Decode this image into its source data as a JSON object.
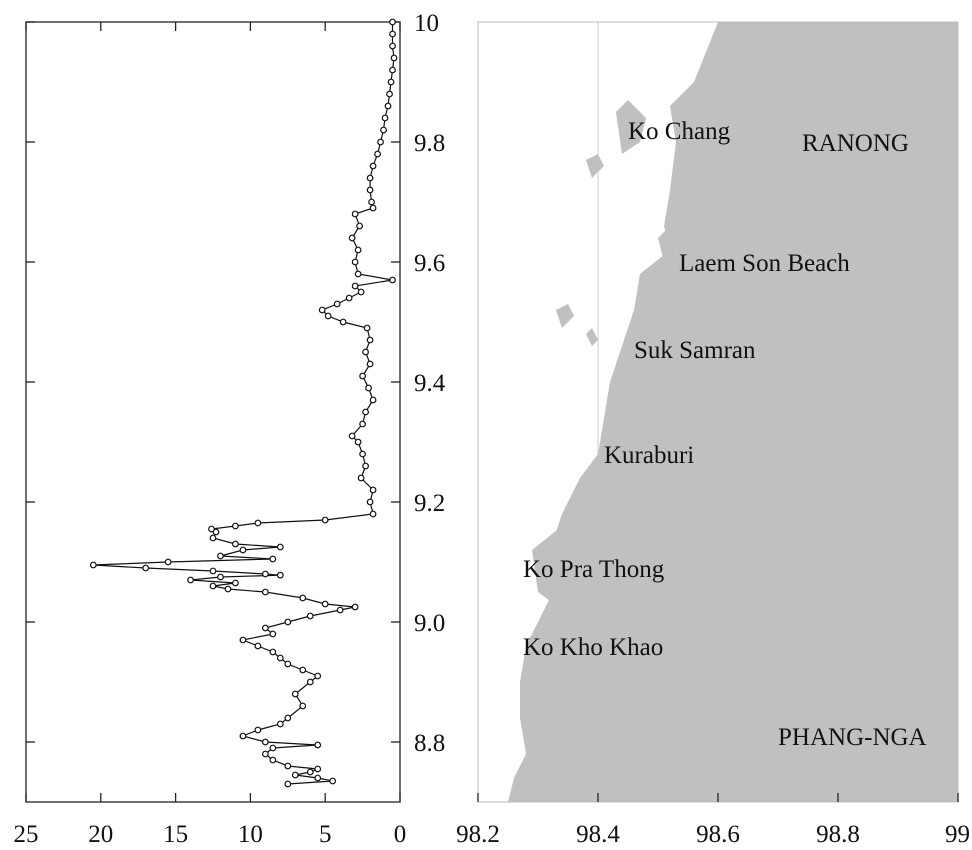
{
  "colors": {
    "land": "#c0c0c0",
    "axis": "#222222",
    "line": "#111111",
    "marker_fill": "#ffffff",
    "marker_stroke": "#111111",
    "sea": "#ffffff"
  },
  "chart_data": [
    {
      "type": "line",
      "orientation": "horizontal-profile",
      "title": "",
      "xlabel": "",
      "ylabel": "",
      "x_reversed": true,
      "xlim": [
        25,
        0
      ],
      "ylim": [
        8.7,
        10.0
      ],
      "x_ticks": [
        "25",
        "20",
        "15",
        "10",
        "5",
        "0"
      ],
      "y_ticks": [
        "8.8",
        "9.0",
        "9.2",
        "9.4",
        "9.6",
        "9.8",
        "10"
      ],
      "grid": false,
      "legend": "none",
      "markers": "open-circle",
      "points": [
        [
          0.5,
          10.0
        ],
        [
          0.5,
          9.98
        ],
        [
          0.5,
          9.96
        ],
        [
          0.4,
          9.94
        ],
        [
          0.5,
          9.92
        ],
        [
          0.6,
          9.9
        ],
        [
          0.7,
          9.88
        ],
        [
          0.8,
          9.86
        ],
        [
          1.0,
          9.84
        ],
        [
          1.1,
          9.82
        ],
        [
          1.3,
          9.8
        ],
        [
          1.5,
          9.78
        ],
        [
          1.8,
          9.76
        ],
        [
          2.0,
          9.74
        ],
        [
          2.0,
          9.72
        ],
        [
          1.9,
          9.7
        ],
        [
          1.8,
          9.69
        ],
        [
          3.0,
          9.68
        ],
        [
          2.7,
          9.66
        ],
        [
          3.2,
          9.64
        ],
        [
          2.8,
          9.62
        ],
        [
          3.0,
          9.6
        ],
        [
          2.8,
          9.58
        ],
        [
          0.5,
          9.57
        ],
        [
          3.0,
          9.56
        ],
        [
          2.6,
          9.55
        ],
        [
          3.4,
          9.54
        ],
        [
          4.2,
          9.53
        ],
        [
          5.2,
          9.52
        ],
        [
          4.8,
          9.51
        ],
        [
          3.8,
          9.5
        ],
        [
          2.2,
          9.49
        ],
        [
          2.0,
          9.47
        ],
        [
          2.3,
          9.45
        ],
        [
          2.0,
          9.43
        ],
        [
          2.5,
          9.41
        ],
        [
          2.1,
          9.39
        ],
        [
          1.8,
          9.37
        ],
        [
          2.3,
          9.35
        ],
        [
          2.5,
          9.33
        ],
        [
          3.2,
          9.31
        ],
        [
          2.8,
          9.3
        ],
        [
          2.5,
          9.28
        ],
        [
          2.3,
          9.26
        ],
        [
          2.6,
          9.24
        ],
        [
          1.8,
          9.22
        ],
        [
          2.0,
          9.2
        ],
        [
          1.8,
          9.18
        ],
        [
          5.0,
          9.17
        ],
        [
          9.5,
          9.165
        ],
        [
          11.0,
          9.16
        ],
        [
          12.6,
          9.155
        ],
        [
          12.3,
          9.15
        ],
        [
          12.5,
          9.14
        ],
        [
          11.0,
          9.13
        ],
        [
          8.0,
          9.125
        ],
        [
          10.5,
          9.12
        ],
        [
          12.0,
          9.11
        ],
        [
          8.5,
          9.105
        ],
        [
          15.5,
          9.1
        ],
        [
          20.5,
          9.095
        ],
        [
          17.0,
          9.09
        ],
        [
          12.5,
          9.085
        ],
        [
          9.0,
          9.08
        ],
        [
          8.0,
          9.078
        ],
        [
          12.0,
          9.075
        ],
        [
          14.0,
          9.07
        ],
        [
          11.0,
          9.065
        ],
        [
          12.5,
          9.06
        ],
        [
          11.5,
          9.055
        ],
        [
          9.0,
          9.05
        ],
        [
          6.5,
          9.04
        ],
        [
          5.0,
          9.03
        ],
        [
          3.0,
          9.025
        ],
        [
          4.0,
          9.02
        ],
        [
          6.0,
          9.01
        ],
        [
          7.5,
          9.0
        ],
        [
          9.0,
          8.99
        ],
        [
          8.5,
          8.98
        ],
        [
          10.5,
          8.97
        ],
        [
          9.5,
          8.96
        ],
        [
          8.5,
          8.95
        ],
        [
          8.0,
          8.94
        ],
        [
          7.5,
          8.93
        ],
        [
          6.5,
          8.92
        ],
        [
          5.5,
          8.91
        ],
        [
          6.0,
          8.9
        ],
        [
          7.0,
          8.88
        ],
        [
          6.5,
          8.86
        ],
        [
          7.5,
          8.84
        ],
        [
          8.0,
          8.83
        ],
        [
          9.5,
          8.82
        ],
        [
          10.5,
          8.81
        ],
        [
          9.0,
          8.8
        ],
        [
          5.5,
          8.795
        ],
        [
          8.5,
          8.79
        ],
        [
          9.0,
          8.78
        ],
        [
          8.5,
          8.77
        ],
        [
          7.5,
          8.76
        ],
        [
          5.5,
          8.755
        ],
        [
          6.0,
          8.75
        ],
        [
          7.0,
          8.745
        ],
        [
          5.5,
          8.74
        ],
        [
          4.5,
          8.735
        ],
        [
          7.5,
          8.73
        ]
      ]
    },
    {
      "type": "map",
      "xlim": [
        98.2,
        99.0
      ],
      "ylim": [
        8.7,
        10.0
      ],
      "x_ticks": [
        "98.2",
        "98.4",
        "98.6",
        "98.8",
        "99"
      ],
      "coastline": [
        [
          99.0,
          10.0
        ],
        [
          98.6,
          10.0
        ],
        [
          98.58,
          9.95
        ],
        [
          98.56,
          9.9
        ],
        [
          98.52,
          9.86
        ],
        [
          98.53,
          9.8
        ],
        [
          98.52,
          9.72
        ],
        [
          98.51,
          9.66
        ],
        [
          98.52,
          9.62
        ],
        [
          98.47,
          9.58
        ],
        [
          98.46,
          9.52
        ],
        [
          98.44,
          9.46
        ],
        [
          98.42,
          9.4
        ],
        [
          98.41,
          9.34
        ],
        [
          98.4,
          9.28
        ],
        [
          98.37,
          9.24
        ],
        [
          98.34,
          9.18
        ],
        [
          98.32,
          9.12
        ],
        [
          98.31,
          9.08
        ],
        [
          98.32,
          9.04
        ],
        [
          98.3,
          9.0
        ],
        [
          98.28,
          8.96
        ],
        [
          98.27,
          8.9
        ],
        [
          98.27,
          8.84
        ],
        [
          98.28,
          8.78
        ],
        [
          98.26,
          8.74
        ],
        [
          98.25,
          8.7
        ],
        [
          99.0,
          8.7
        ]
      ],
      "islands": [
        [
          [
            98.43,
            9.85
          ],
          [
            98.45,
            9.87
          ],
          [
            98.48,
            9.84
          ],
          [
            98.47,
            9.8
          ],
          [
            98.44,
            9.78
          ]
        ],
        [
          [
            98.38,
            9.77
          ],
          [
            98.4,
            9.78
          ],
          [
            98.41,
            9.76
          ],
          [
            98.39,
            9.74
          ]
        ],
        [
          [
            98.5,
            9.64
          ],
          [
            98.52,
            9.66
          ],
          [
            98.53,
            9.63
          ],
          [
            98.51,
            9.6
          ]
        ],
        [
          [
            98.33,
            9.52
          ],
          [
            98.35,
            9.53
          ],
          [
            98.36,
            9.51
          ],
          [
            98.34,
            9.49
          ]
        ],
        [
          [
            98.38,
            9.48
          ],
          [
            98.39,
            9.49
          ],
          [
            98.4,
            9.47
          ],
          [
            98.39,
            9.46
          ]
        ],
        [
          [
            98.34,
            9.16
          ],
          [
            98.38,
            9.14
          ],
          [
            98.38,
            9.06
          ],
          [
            98.34,
            9.02
          ],
          [
            98.3,
            9.05
          ],
          [
            98.29,
            9.12
          ]
        ],
        [
          [
            98.36,
            9.04
          ],
          [
            98.4,
            9.03
          ],
          [
            98.38,
            8.99
          ],
          [
            98.35,
            9.0
          ]
        ]
      ],
      "labels": [
        {
          "text": "Ko Chang",
          "lon": 98.45,
          "lat": 9.82
        },
        {
          "text": "RANONG",
          "lon": 98.74,
          "lat": 9.8
        },
        {
          "text": "Laem Son Beach",
          "lon": 98.535,
          "lat": 9.6
        },
        {
          "text": "Suk Samran",
          "lon": 98.46,
          "lat": 9.455
        },
        {
          "text": "Kuraburi",
          "lon": 98.41,
          "lat": 9.28
        },
        {
          "text": "Ko Pra Thong",
          "lon": 98.275,
          "lat": 9.09
        },
        {
          "text": "Ko Kho Khao",
          "lon": 98.275,
          "lat": 8.96
        },
        {
          "text": "PHANG-NGA",
          "lon": 98.7,
          "lat": 8.81
        }
      ]
    }
  ]
}
